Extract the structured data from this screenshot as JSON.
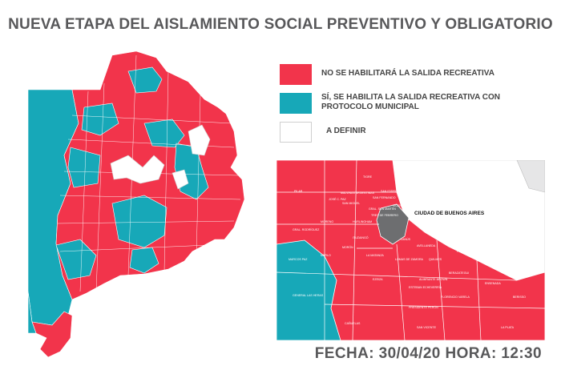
{
  "title": "NUEVA ETAPA DEL AISLAMIENTO SOCIAL PREVENTIVO Y OBLIGATORIO",
  "colors": {
    "red": "#f2344b",
    "teal": "#17a8b8",
    "white": "#ffffff",
    "gray": "#6d6e70",
    "title_gray": "#58585a"
  },
  "legend": [
    {
      "color": "red",
      "label": "NO SE HABILITARÁ LA SALIDA RECREATIVA"
    },
    {
      "color": "teal",
      "label": "SÍ, SE HABILITA LA SALIDA RECREATIVA CON PROTOCOLO MUNICIPAL"
    },
    {
      "color": "white",
      "label": "A DEFINIR"
    }
  ],
  "inset_map": {
    "city_label": "CIUDAD DE BUENOS AIRES",
    "place_labels": [
      "PILAR",
      "TIGRE",
      "SAN FERNANDO",
      "SAN ISIDRO",
      "VICENTE LÓPEZ",
      "MALVINAS ARGENTINAS",
      "JOSÉ C. PAZ",
      "SAN MIGUEL",
      "MORENO",
      "GRAL. SAN MARTÍN",
      "TRES DE FEBRERO",
      "HURLINGHAM",
      "ITUZAINGÓ",
      "MERLO",
      "MORÓN",
      "LA MATANZA",
      "GRAL. RODRÍGUEZ",
      "LANÚS",
      "AVELLANEDA",
      "LOMAS DE ZAMORA",
      "QUILMES",
      "BERAZATEGUI",
      "ENSENADA",
      "BERISSO",
      "LA PLATA",
      "ALMIRANTE BROWN",
      "FLORENCIO VARELA",
      "ESTEBAN ECHEVERRÍA",
      "EZEIZA",
      "PRESIDENTE PERÓN",
      "SAN VICENTE",
      "CAÑUELAS",
      "MARCOS PAZ",
      "GENERAL LAS HERAS",
      "P. Quilmes",
      "P. Lara"
    ]
  },
  "footer": "FECHA: 30/04/20 HORA: 12:30"
}
